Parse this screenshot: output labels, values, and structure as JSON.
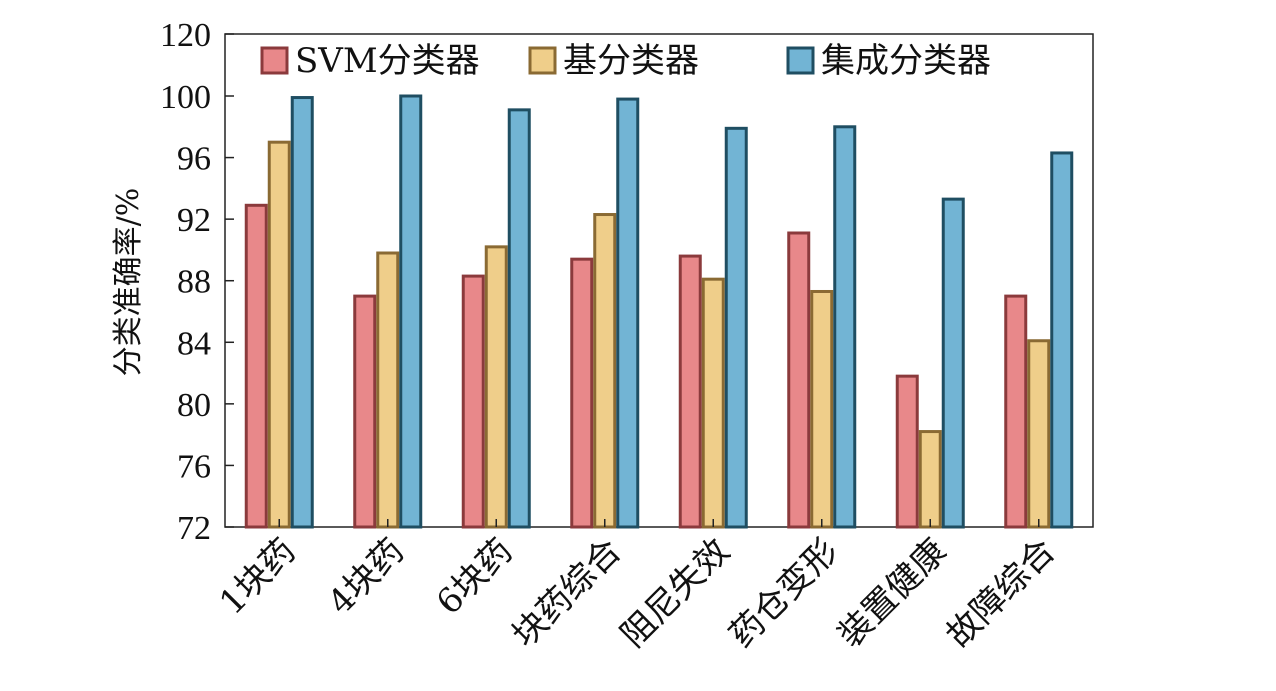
{
  "chart_data": {
    "type": "bar",
    "ylabel": "分类准确率/%",
    "xlabel": "",
    "title": "",
    "ylim": [
      72,
      120
    ],
    "yticks": [
      72,
      76,
      80,
      84,
      88,
      92,
      96,
      100,
      120
    ],
    "ytick_labels": [
      "72",
      "76",
      "80",
      "84",
      "88",
      "92",
      "96",
      "100",
      "120"
    ],
    "legend_position": "top",
    "grid": false,
    "categories": [
      "1块药",
      "4块药",
      "6块药",
      "块药综合",
      "阻尼失效",
      "药仓变形",
      "装置健康",
      "故障综合"
    ],
    "series": [
      {
        "name": "SVM分类器",
        "color": "#e8888a",
        "edge": "#8b3a3c",
        "values": [
          92.9,
          87.0,
          88.3,
          89.4,
          89.6,
          91.1,
          81.8,
          87.0
        ]
      },
      {
        "name": "基分类器",
        "color": "#efce8a",
        "edge": "#8a6a33",
        "values": [
          97.0,
          89.8,
          90.2,
          92.3,
          88.1,
          87.3,
          78.2,
          84.1
        ]
      },
      {
        "name": "集成分类器",
        "color": "#72b4d4",
        "edge": "#1f4e62",
        "values": [
          99.9,
          100.0,
          99.1,
          99.8,
          97.9,
          98.0,
          93.3,
          96.3
        ]
      }
    ]
  }
}
